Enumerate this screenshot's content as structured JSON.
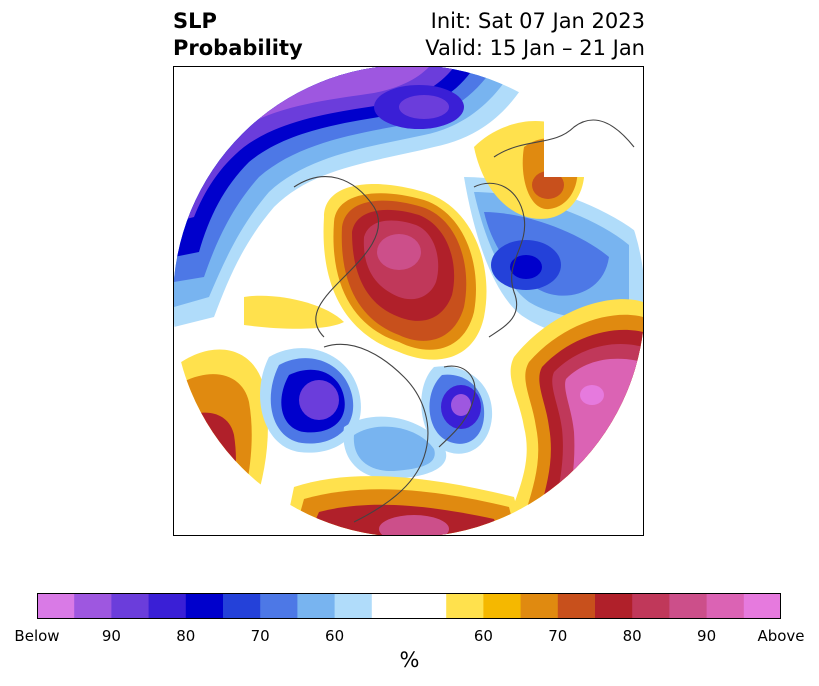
{
  "header": {
    "title_line1": "SLP",
    "title_line2": "Probability",
    "init": "Init: Sat 07 Jan 2023",
    "valid": "Valid: 15 Jan – 21 Jan"
  },
  "colorbar": {
    "colors": [
      "#d97ae6",
      "#9e57e0",
      "#6b3ddb",
      "#3a1fd6",
      "#0000cc",
      "#2441d9",
      "#4d78e6",
      "#78b4f0",
      "#b0dcfa",
      "#ffffff",
      "#ffffff",
      "#ffe14d",
      "#f5b800",
      "#e08a10",
      "#c8501c",
      "#b0202a",
      "#c0385a",
      "#cc4f8a",
      "#db63b4",
      "#e67ade"
    ],
    "tick_labels": [
      "Below",
      "90",
      "80",
      "70",
      "60",
      "60",
      "70",
      "80",
      "90",
      "Above"
    ],
    "unit": "%"
  },
  "map": {
    "projection": "north-polar-stereographic",
    "palette": {
      "below_deep": "#0000cc",
      "below_mid": "#4d78e6",
      "below_light": "#b0dcfa",
      "above_light": "#ffe14d",
      "above_mid": "#e08a10",
      "above_deep": "#b0202a",
      "above_max": "#db63b4"
    }
  }
}
